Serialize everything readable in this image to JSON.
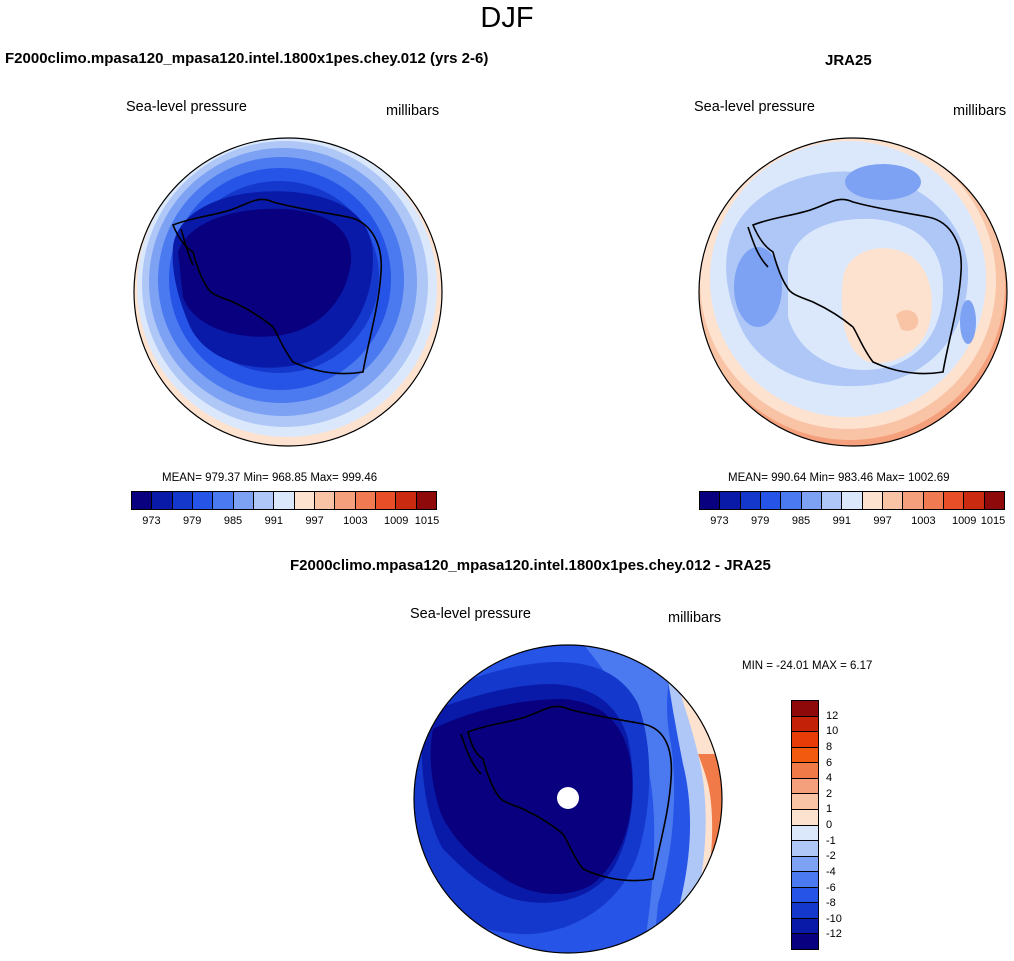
{
  "title": "DJF",
  "panels": [
    {
      "id": "model",
      "title": "F2000climo.mpasa120_mpasa120.intel.1800x1pes.chey.012 (yrs 2-6)",
      "variable": "Sea-level pressure",
      "units": "millibars",
      "stats": "MEAN= 979.37  Min= 968.85  Max= 999.46",
      "mean": 979.37,
      "min": 968.85,
      "max": 999.46
    },
    {
      "id": "obs",
      "title": "JRA25",
      "variable": "Sea-level pressure",
      "units": "millibars",
      "stats": "MEAN= 990.64  Min= 983.46  Max= 1002.69",
      "mean": 990.64,
      "min": 983.46,
      "max": 1002.69
    },
    {
      "id": "diff",
      "title": "F2000climo.mpasa120_mpasa120.intel.1800x1pes.chey.012 - JRA25",
      "variable": "Sea-level pressure",
      "units": "millibars",
      "stats": "MIN = -24.01 MAX =   6.17",
      "min": -24.01,
      "max": 6.17
    }
  ],
  "colorbar_abs": {
    "tick_labels": [
      "973",
      "979",
      "985",
      "991",
      "997",
      "1003",
      "1009",
      "1015"
    ],
    "colors": [
      "#08007f",
      "#0a1aa8",
      "#1438cc",
      "#2654e6",
      "#4b7af0",
      "#7da2f3",
      "#aec7f7",
      "#dbe8fb",
      "#fde2d0",
      "#f9c4a6",
      "#f5a07c",
      "#f07a52",
      "#e84e28",
      "#c92a10",
      "#8e0a0a"
    ]
  },
  "colorbar_diff": {
    "tick_labels": [
      "12",
      "10",
      "8",
      "6",
      "4",
      "2",
      "1",
      "0",
      "-1",
      "-2",
      "-4",
      "-6",
      "-8",
      "-10",
      "-12"
    ],
    "colors": [
      "#8e0a0a",
      "#c42208",
      "#e83c08",
      "#f25a10",
      "#f07a48",
      "#f5a07c",
      "#f9c4a6",
      "#fde2d0",
      "#dbe8fb",
      "#aec7f7",
      "#7da2f3",
      "#4b7af0",
      "#2654e6",
      "#1438cc",
      "#0a1aa8",
      "#08007f"
    ]
  }
}
